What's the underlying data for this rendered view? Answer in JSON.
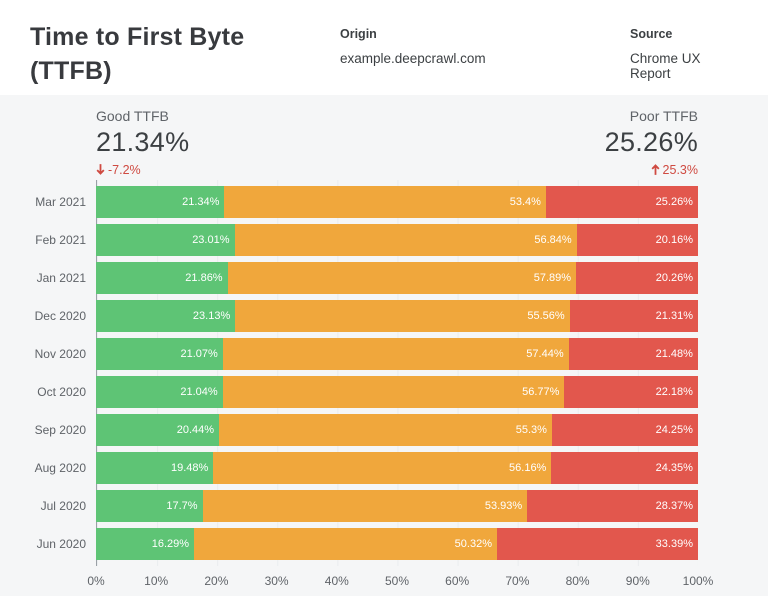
{
  "header": {
    "title": "Time to First Byte (TTFB)",
    "origin_label": "Origin",
    "origin_value": "example.deepcrawl.com",
    "source_label": "Source",
    "source_value": "Chrome UX Report"
  },
  "summary": {
    "good": {
      "label": "Good TTFB",
      "value": "21.34%",
      "delta": "-7.2%",
      "direction": "down"
    },
    "poor": {
      "label": "Poor TTFB",
      "value": "25.26%",
      "delta": "25.3%",
      "direction": "up"
    }
  },
  "colors": {
    "good": "#5ec475",
    "average": "#f0a73c",
    "poor": "#e2574d",
    "delta_red": "#cf4a41",
    "panel_background": "#f5f6f7",
    "axis_line": "#9aa0a6",
    "text_dark": "#3c4043",
    "text_gray": "#5f6368"
  },
  "chart_data": {
    "type": "bar",
    "stacked": true,
    "orientation": "horizontal",
    "categories": [
      "Mar 2021",
      "Feb 2021",
      "Jan 2021",
      "Dec 2020",
      "Nov 2020",
      "Oct 2020",
      "Sep 2020",
      "Aug 2020",
      "Jul 2020",
      "Jun 2020"
    ],
    "series": [
      {
        "key": "good",
        "values": [
          21.34,
          23.01,
          21.86,
          23.13,
          21.07,
          21.04,
          20.44,
          19.48,
          17.7,
          16.29
        ]
      },
      {
        "key": "average",
        "values": [
          53.4,
          56.84,
          57.89,
          55.56,
          57.44,
          56.77,
          55.3,
          56.16,
          53.93,
          50.32
        ]
      },
      {
        "key": "poor",
        "values": [
          25.26,
          20.16,
          20.26,
          21.31,
          21.48,
          22.18,
          24.25,
          24.35,
          28.37,
          33.39
        ]
      }
    ],
    "value_label_suffix": "%",
    "x_ticks": [
      "0%",
      "10%",
      "20%",
      "30%",
      "40%",
      "50%",
      "60%",
      "70%",
      "80%",
      "90%",
      "100%"
    ],
    "xlim": [
      0,
      100
    ],
    "grid": true,
    "legend": "none"
  }
}
